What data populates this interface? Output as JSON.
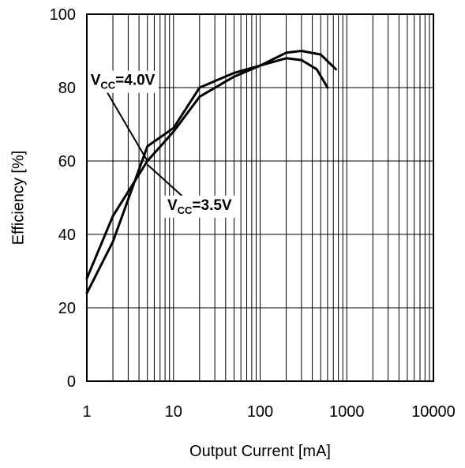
{
  "chart_data": {
    "type": "line",
    "title": "",
    "xlabel": "Output Current [mA]",
    "ylabel": "Efficiency [%]",
    "x_scale": "log",
    "xlim": [
      1,
      10000
    ],
    "ylim": [
      0,
      100
    ],
    "x_ticks": [
      1,
      10,
      100,
      1000,
      10000
    ],
    "x_tick_labels": [
      "1",
      "10",
      "100",
      "1000",
      "10000"
    ],
    "y_ticks": [
      0,
      20,
      40,
      60,
      80,
      100
    ],
    "y_tick_labels": [
      "0",
      "20",
      "40",
      "60",
      "80",
      "100"
    ],
    "grid": true,
    "legend": "none",
    "series": [
      {
        "name": "VCC=4.0V",
        "x": [
          1,
          2,
          5,
          10,
          20,
          50,
          100,
          200,
          300,
          450,
          600
        ],
        "y": [
          24,
          38,
          64,
          69,
          80,
          84,
          86,
          88,
          87.5,
          85,
          80
        ]
      },
      {
        "name": "VCC=3.5V",
        "x": [
          1,
          2,
          5,
          10,
          20,
          50,
          100,
          200,
          300,
          500,
          750
        ],
        "y": [
          28,
          45,
          60,
          68,
          77.5,
          83,
          86,
          89.5,
          90,
          89,
          85
        ]
      }
    ],
    "annotations": [
      {
        "series": 0,
        "main": "V",
        "sub": "CC",
        "rest": "=4.0V",
        "points_to": {
          "x": 5,
          "y": 60
        },
        "label_at": {
          "x": 2.6,
          "y": 82
        }
      },
      {
        "series": 1,
        "main": "V",
        "sub": "CC",
        "rest": "=3.5V",
        "points_to": {
          "x": 5,
          "y": 59
        },
        "label_at": {
          "x": 20,
          "y": 48
        }
      }
    ],
    "line_color": "#000000",
    "grid_color": "#000000",
    "background": "#ffffff"
  }
}
